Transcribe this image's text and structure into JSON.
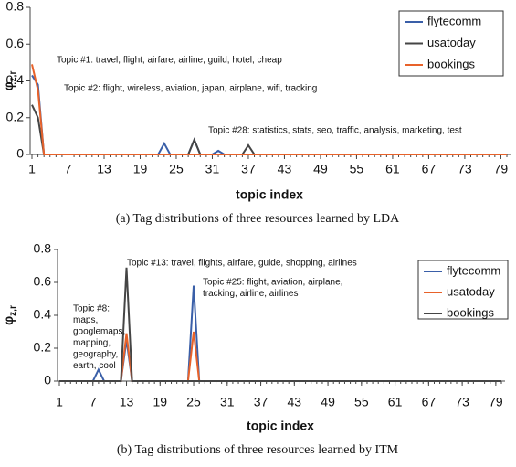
{
  "chart_data": [
    {
      "type": "line",
      "caption": "(a) Tag distributions of three resources learned by LDA",
      "xlabel": "topic index",
      "ylabel": "φ",
      "ylabel_sub": "z,r",
      "x": [
        1,
        2,
        3,
        4,
        5,
        6,
        7,
        8,
        9,
        10,
        11,
        12,
        13,
        14,
        15,
        16,
        17,
        18,
        19,
        20,
        21,
        22,
        23,
        24,
        25,
        26,
        27,
        28,
        29,
        30,
        31,
        32,
        33,
        34,
        35,
        36,
        37,
        38,
        39,
        40,
        41,
        42,
        43,
        44,
        45,
        46,
        47,
        48,
        49,
        50,
        51,
        52,
        53,
        54,
        55,
        56,
        57,
        58,
        59,
        60,
        61,
        62,
        63,
        64,
        65,
        66,
        67,
        68,
        69,
        70,
        71,
        72,
        73,
        74,
        75,
        76,
        77,
        78,
        79,
        80
      ],
      "xlim": [
        1,
        80
      ],
      "xticks": [
        1,
        7,
        13,
        19,
        25,
        31,
        37,
        43,
        49,
        55,
        61,
        67,
        73,
        79
      ],
      "ylim": [
        0,
        0.8
      ],
      "yticks": [
        0,
        0.2,
        0.4,
        0.6,
        0.8
      ],
      "legend": "upper right",
      "series": [
        {
          "name": "flytecomm",
          "color": "#3a5fa8",
          "values": [
            0.43,
            0.38,
            0,
            0,
            0,
            0,
            0,
            0,
            0,
            0,
            0,
            0,
            0,
            0,
            0,
            0,
            0,
            0,
            0,
            0,
            0,
            0,
            0.06,
            0,
            0,
            0,
            0,
            0.08,
            0,
            0,
            0,
            0.02,
            0,
            0,
            0,
            0,
            0,
            0,
            0,
            0,
            0,
            0,
            0,
            0,
            0,
            0,
            0,
            0,
            0,
            0,
            0,
            0,
            0,
            0,
            0,
            0,
            0,
            0,
            0,
            0,
            0,
            0,
            0,
            0,
            0,
            0,
            0,
            0,
            0,
            0,
            0,
            0,
            0,
            0,
            0,
            0,
            0,
            0,
            0,
            0
          ]
        },
        {
          "name": "usatoday",
          "color": "#454545",
          "values": [
            0.27,
            0.2,
            0,
            0,
            0,
            0,
            0,
            0,
            0,
            0,
            0,
            0,
            0,
            0,
            0,
            0,
            0,
            0,
            0,
            0,
            0,
            0,
            0,
            0,
            0,
            0,
            0,
            0.08,
            0,
            0,
            0,
            0,
            0,
            0,
            0,
            0,
            0.05,
            0,
            0,
            0,
            0,
            0,
            0,
            0,
            0,
            0,
            0,
            0,
            0,
            0,
            0,
            0,
            0,
            0,
            0,
            0,
            0,
            0,
            0,
            0,
            0,
            0,
            0,
            0,
            0,
            0,
            0,
            0,
            0,
            0,
            0,
            0,
            0,
            0,
            0,
            0,
            0,
            0,
            0,
            0
          ]
        },
        {
          "name": "bookings",
          "color": "#e8622a",
          "values": [
            0.49,
            0.35,
            0,
            0,
            0,
            0,
            0,
            0,
            0,
            0,
            0,
            0,
            0,
            0,
            0,
            0,
            0,
            0,
            0,
            0,
            0,
            0,
            0,
            0,
            0,
            0,
            0,
            0,
            0,
            0,
            0,
            0,
            0,
            0,
            0,
            0,
            0,
            0,
            0,
            0,
            0,
            0,
            0,
            0,
            0,
            0,
            0,
            0,
            0,
            0,
            0,
            0,
            0,
            0,
            0,
            0,
            0,
            0,
            0,
            0,
            0,
            0,
            0,
            0,
            0,
            0,
            0,
            0,
            0,
            0,
            0,
            0,
            0,
            0,
            0,
            0,
            0,
            0,
            0,
            0
          ]
        }
      ],
      "annotations": [
        [
          "Topic #1: travel, flight, airfare, airline, guild, hotel, cheap"
        ],
        [
          "Topic #2: flight, wireless, aviation, japan, airplane, wifi, tracking"
        ],
        [
          "Topic #28: statistics, stats, seo, traffic, analysis, marketing, test"
        ]
      ]
    },
    {
      "type": "line",
      "caption": "(b) Tag distributions of three resources learned by ITM",
      "xlabel": "topic index",
      "ylabel": "φ",
      "ylabel_sub": "z,r",
      "x": [
        1,
        2,
        3,
        4,
        5,
        6,
        7,
        8,
        9,
        10,
        11,
        12,
        13,
        14,
        15,
        16,
        17,
        18,
        19,
        20,
        21,
        22,
        23,
        24,
        25,
        26,
        27,
        28,
        29,
        30,
        31,
        32,
        33,
        34,
        35,
        36,
        37,
        38,
        39,
        40,
        41,
        42,
        43,
        44,
        45,
        46,
        47,
        48,
        49,
        50,
        51,
        52,
        53,
        54,
        55,
        56,
        57,
        58,
        59,
        60,
        61,
        62,
        63,
        64,
        65,
        66,
        67,
        68,
        69,
        70,
        71,
        72,
        73,
        74,
        75,
        76,
        77,
        78,
        79,
        80
      ],
      "xlim": [
        1,
        80
      ],
      "xticks": [
        1,
        7,
        13,
        19,
        25,
        31,
        37,
        43,
        49,
        55,
        61,
        67,
        73,
        79
      ],
      "ylim": [
        0,
        0.8
      ],
      "yticks": [
        0,
        0.2,
        0.4,
        0.6,
        0.8
      ],
      "legend": "upper right",
      "series": [
        {
          "name": "flytecomm",
          "color": "#3a5fa8",
          "values": [
            0,
            0,
            0,
            0,
            0,
            0,
            0,
            0.07,
            0,
            0,
            0,
            0,
            0.25,
            0,
            0,
            0,
            0,
            0,
            0,
            0,
            0,
            0,
            0,
            0,
            0.58,
            0,
            0,
            0,
            0,
            0,
            0,
            0,
            0,
            0,
            0,
            0,
            0,
            0,
            0,
            0,
            0,
            0,
            0,
            0,
            0,
            0,
            0,
            0,
            0,
            0,
            0,
            0,
            0,
            0,
            0,
            0,
            0,
            0,
            0,
            0,
            0,
            0,
            0,
            0,
            0,
            0,
            0,
            0,
            0,
            0,
            0,
            0,
            0,
            0,
            0,
            0,
            0,
            0,
            0,
            0
          ]
        },
        {
          "name": "usatoday",
          "color": "#e8622a",
          "values": [
            0,
            0,
            0,
            0,
            0,
            0,
            0,
            0,
            0,
            0,
            0,
            0,
            0.29,
            0,
            0,
            0,
            0,
            0,
            0,
            0,
            0,
            0,
            0,
            0,
            0.3,
            0,
            0,
            0,
            0,
            0,
            0,
            0,
            0,
            0,
            0,
            0,
            0,
            0,
            0,
            0,
            0,
            0,
            0,
            0,
            0,
            0,
            0,
            0,
            0,
            0,
            0,
            0,
            0,
            0,
            0,
            0,
            0,
            0,
            0,
            0,
            0,
            0,
            0,
            0,
            0,
            0,
            0,
            0,
            0,
            0,
            0,
            0,
            0,
            0,
            0,
            0,
            0,
            0,
            0,
            0
          ]
        },
        {
          "name": "bookings",
          "color": "#454545",
          "values": [
            0,
            0,
            0,
            0,
            0,
            0,
            0,
            0,
            0,
            0,
            0,
            0,
            0.69,
            0,
            0,
            0,
            0,
            0,
            0,
            0,
            0,
            0,
            0,
            0,
            0,
            0,
            0,
            0,
            0,
            0,
            0,
            0,
            0,
            0,
            0,
            0,
            0,
            0,
            0,
            0,
            0,
            0,
            0,
            0,
            0,
            0,
            0,
            0,
            0,
            0,
            0,
            0,
            0,
            0,
            0,
            0,
            0,
            0,
            0,
            0,
            0,
            0,
            0,
            0,
            0,
            0,
            0,
            0,
            0,
            0,
            0,
            0,
            0,
            0,
            0,
            0,
            0,
            0,
            0,
            0
          ]
        }
      ],
      "annotations": [
        [
          "Topic #13: travel, flights, airfare, guide, shopping, airlines"
        ],
        [
          "Topic #25: flight, aviation, airplane,",
          "tracking, airline, airlines"
        ],
        [
          "Topic #8:",
          "maps,",
          "googlemaps,",
          " mapping,",
          "geography,",
          "earth, cool"
        ]
      ]
    }
  ]
}
